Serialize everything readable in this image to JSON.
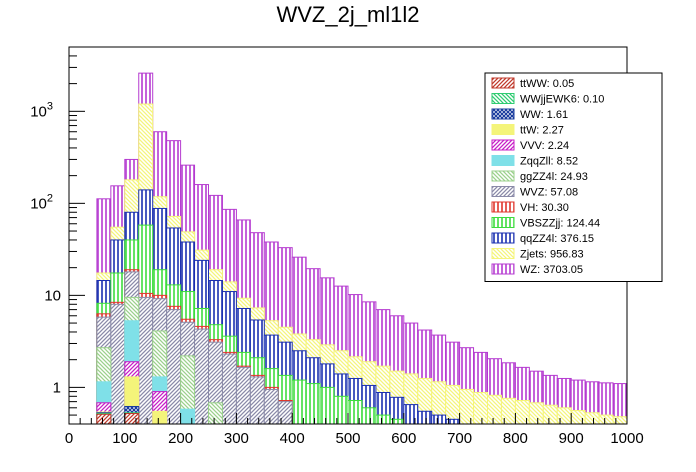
{
  "chart_data": {
    "type": "bar",
    "title": "WVZ_2j_ml1l2",
    "xlabel": "",
    "ylabel": "",
    "stacked": true,
    "log_y": true,
    "xlim": [
      0,
      1000
    ],
    "ylim": [
      0.4,
      5000
    ],
    "bin_width": 25,
    "x_ticks": [
      0,
      100,
      200,
      300,
      400,
      500,
      600,
      700,
      800,
      900,
      1000
    ],
    "y_ticks": [
      {
        "value": 1,
        "label": "1"
      },
      {
        "value": 10,
        "label": "10"
      },
      {
        "value": 100,
        "label": "10",
        "exp": "2"
      },
      {
        "value": 1000,
        "label": "10",
        "exp": "3"
      }
    ],
    "grid": false,
    "legend_position": "top-right",
    "bin_edges": [
      0,
      25,
      50,
      75,
      100,
      125,
      150,
      175,
      200,
      225,
      250,
      275,
      300,
      325,
      350,
      375,
      400,
      425,
      450,
      475,
      500,
      525,
      550,
      575,
      600,
      625,
      650,
      675,
      700,
      725,
      750,
      775,
      800,
      825,
      850,
      875,
      900,
      925,
      950,
      975,
      1000
    ],
    "stack_totals": [
      {
        "name": "ttWW: 0.05",
        "color": "#c0392b",
        "values": [
          0.0,
          0.0,
          0.51,
          0.0,
          0.52,
          0.0,
          0.0,
          0.0,
          0.0,
          0.0,
          0.0,
          0.0,
          0.0,
          0.0,
          0.0,
          0.0,
          0.0,
          0.0,
          0.0,
          0.0,
          0.0,
          0.0,
          0.0,
          0.0,
          0.0,
          0.0,
          0.0,
          0.0,
          0.0,
          0.0,
          0.0,
          0.0,
          0.0,
          0.0,
          0.0,
          0.0,
          0.0,
          0.0,
          0.0,
          0.0
        ]
      },
      {
        "name": "WWjjEWK6: 0.10",
        "color": "#2ecc71",
        "values": [
          0.0,
          0.0,
          0.52,
          0.0,
          0.53,
          0.0,
          0.0,
          0.0,
          0.0,
          0.0,
          0.0,
          0.0,
          0.0,
          0.0,
          0.0,
          0.0,
          0.0,
          0.0,
          0.0,
          0.0,
          0.0,
          0.0,
          0.0,
          0.0,
          0.0,
          0.0,
          0.0,
          0.0,
          0.0,
          0.0,
          0.0,
          0.0,
          0.0,
          0.0,
          0.0,
          0.0,
          0.0,
          0.0,
          0.0,
          0.0
        ]
      },
      {
        "name": "WW: 1.61",
        "color": "#1a3c9e",
        "values": [
          0.0,
          0.0,
          0.53,
          0.0,
          0.62,
          0.0,
          0.0,
          0.0,
          0.0,
          0.0,
          0.0,
          0.0,
          0.0,
          0.0,
          0.0,
          0.0,
          0.0,
          0.0,
          0.0,
          0.0,
          0.0,
          0.0,
          0.0,
          0.0,
          0.0,
          0.0,
          0.0,
          0.0,
          0.0,
          0.0,
          0.0,
          0.0,
          0.0,
          0.0,
          0.0,
          0.0,
          0.0,
          0.0,
          0.0,
          0.0
        ]
      },
      {
        "name": "ttW: 2.27",
        "color": "#f4f47a",
        "values": [
          0.0,
          0.0,
          0.54,
          0.0,
          1.3,
          0.0,
          0.55,
          0.0,
          0.0,
          0.0,
          0.0,
          0.0,
          0.0,
          0.0,
          0.0,
          0.0,
          0.0,
          0.0,
          0.0,
          0.0,
          0.0,
          0.0,
          0.0,
          0.0,
          0.0,
          0.0,
          0.0,
          0.0,
          0.0,
          0.0,
          0.0,
          0.0,
          0.0,
          0.0,
          0.0,
          0.0,
          0.0,
          0.0,
          0.0,
          0.0
        ]
      },
      {
        "name": "VVV: 2.24",
        "color": "#c71fc7",
        "values": [
          0.0,
          0.0,
          0.68,
          0.0,
          1.9,
          0.0,
          0.9,
          0.0,
          0.0,
          0.0,
          0.0,
          0.0,
          0.0,
          0.0,
          0.0,
          0.0,
          0.0,
          0.0,
          0.0,
          0.0,
          0.0,
          0.0,
          0.0,
          0.0,
          0.0,
          0.0,
          0.0,
          0.0,
          0.0,
          0.0,
          0.0,
          0.0,
          0.0,
          0.0,
          0.0,
          0.0,
          0.0,
          0.0,
          0.0,
          0.0
        ]
      },
      {
        "name": "ZqqZll: 8.52",
        "color": "#7fe0e8",
        "values": [
          0.0,
          0.0,
          1.15,
          0.0,
          5.3,
          0.0,
          1.3,
          0.0,
          0.58,
          0.0,
          0.0,
          0.0,
          0.0,
          0.0,
          0.0,
          0.0,
          0.0,
          0.0,
          0.0,
          0.0,
          0.0,
          0.0,
          0.0,
          0.0,
          0.0,
          0.0,
          0.0,
          0.0,
          0.0,
          0.0,
          0.0,
          0.0,
          0.0,
          0.0,
          0.0,
          0.0,
          0.0,
          0.0,
          0.0,
          0.0
        ]
      },
      {
        "name": "ggZZ4l: 24.93",
        "color": "#9bd18c",
        "values": [
          0.0,
          0.0,
          2.7,
          0.0,
          9.5,
          0.0,
          4.1,
          0.0,
          2.2,
          0.0,
          0.68,
          0.0,
          0.0,
          0.0,
          0.0,
          0.0,
          0.0,
          0.0,
          0.0,
          0.0,
          0.0,
          0.0,
          0.0,
          0.0,
          0.0,
          0.0,
          0.0,
          0.0,
          0.0,
          0.0,
          0.0,
          0.0,
          0.0,
          0.0,
          0.0,
          0.0,
          0.0,
          0.0,
          0.0,
          0.0
        ]
      },
      {
        "name": "WVZ: 57.08",
        "color": "#8a8aa8",
        "values": [
          0.0,
          0.0,
          5.8,
          8.0,
          18.0,
          9.5,
          9.2,
          7.0,
          5.1,
          4.3,
          3.1,
          2.3,
          1.65,
          1.3,
          0.95,
          0.7,
          0.0,
          0.0,
          0.0,
          0.0,
          0.0,
          0.0,
          0.0,
          0.0,
          0.0,
          0.0,
          0.0,
          0.0,
          0.0,
          0.0,
          0.0,
          0.0,
          0.0,
          0.0,
          0.0,
          0.0,
          0.0,
          0.0,
          0.0,
          0.0
        ]
      },
      {
        "name": "VH: 30.30",
        "color": "#e0352b",
        "values": [
          0.0,
          0.0,
          6.3,
          8.4,
          19.0,
          10.5,
          10.0,
          7.6,
          5.5,
          4.6,
          3.3,
          2.4,
          1.7,
          1.35,
          1.0,
          0.72,
          0.0,
          0.0,
          0.0,
          0.0,
          0.0,
          0.0,
          0.0,
          0.0,
          0.0,
          0.0,
          0.0,
          0.0,
          0.0,
          0.0,
          0.0,
          0.0,
          0.0,
          0.0,
          0.0,
          0.0,
          0.0,
          0.0,
          0.0,
          0.0
        ]
      },
      {
        "name": "VBSZZjj: 124.44",
        "color": "#3ddc3d",
        "values": [
          0.0,
          0.0,
          8.2,
          17.5,
          40.0,
          58.0,
          19.0,
          13.0,
          11.0,
          7.2,
          4.8,
          3.6,
          2.4,
          2.1,
          1.6,
          1.35,
          1.2,
          1.1,
          1.0,
          0.8,
          0.72,
          0.6,
          0.5,
          0.45,
          0.0,
          0.0,
          0.0,
          0.0,
          0.0,
          0.0,
          0.0,
          0.0,
          0.0,
          0.0,
          0.0,
          0.0,
          0.0,
          0.0,
          0.0,
          0.0
        ]
      },
      {
        "name": "qqZZ4l: 376.15",
        "color": "#1a2fb0",
        "values": [
          0.0,
          0.0,
          14.5,
          40.0,
          80.0,
          140.0,
          88.0,
          54.0,
          38.0,
          24.0,
          14.5,
          11.0,
          7.2,
          5.4,
          3.7,
          3.1,
          2.5,
          2.1,
          1.8,
          1.4,
          1.25,
          1.05,
          0.88,
          0.78,
          0.65,
          0.55,
          0.5,
          0.45,
          0.0,
          0.0,
          0.0,
          0.0,
          0.0,
          0.0,
          0.0,
          0.0,
          0.0,
          0.0,
          0.0,
          0.0
        ]
      },
      {
        "name": "Zjets: 956.83",
        "color": "#f5f57a",
        "values": [
          0.0,
          0.0,
          17.5,
          55.0,
          180.0,
          1200.0,
          118.0,
          72.0,
          49.0,
          31.0,
          19.0,
          14.0,
          9.3,
          7.3,
          5.3,
          4.5,
          3.8,
          3.3,
          2.9,
          2.5,
          2.15,
          1.9,
          1.7,
          1.5,
          1.4,
          1.25,
          1.15,
          1.05,
          0.95,
          0.88,
          0.82,
          0.76,
          0.72,
          0.68,
          0.64,
          0.6,
          0.56,
          0.53,
          0.5,
          0.48
        ]
      },
      {
        "name": "WZ: 3703.05",
        "color": "#b53bd0",
        "values": [
          0.0,
          0.0,
          112.0,
          155.0,
          300.0,
          2600.0,
          600.0,
          480.0,
          260.0,
          160.0,
          122.0,
          86.0,
          66.0,
          48.0,
          38.0,
          33.0,
          26.0,
          19.5,
          15.5,
          12.6,
          10.2,
          8.5,
          7.0,
          6.0,
          5.0,
          4.2,
          3.7,
          3.1,
          2.7,
          2.4,
          2.05,
          1.85,
          1.65,
          1.5,
          1.35,
          1.25,
          1.2,
          1.15,
          1.12,
          1.1
        ]
      }
    ]
  }
}
